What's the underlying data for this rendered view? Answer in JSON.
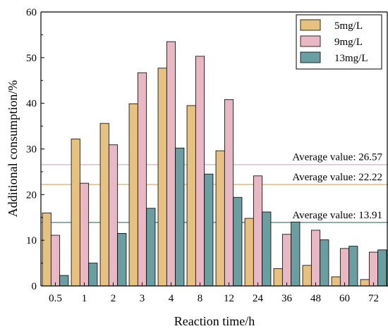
{
  "chart_data": {
    "type": "bar",
    "xlabel": "Reaction time/h",
    "ylabel": "Additional consumption/%",
    "ylim": [
      0,
      60
    ],
    "yticks": [
      "0",
      "10",
      "20",
      "30",
      "40",
      "50",
      "60"
    ],
    "categories": [
      "0.5",
      "1",
      "2",
      "3",
      "4",
      "8",
      "12",
      "24",
      "36",
      "48",
      "60",
      "72"
    ],
    "series": [
      {
        "name": "5mg/L",
        "color": "#e6c182",
        "values": [
          16.0,
          32.2,
          35.6,
          39.9,
          47.7,
          39.5,
          29.6,
          14.8,
          3.8,
          4.5,
          2.0,
          1.4
        ]
      },
      {
        "name": "9mg/L",
        "color": "#e8b9c4",
        "values": [
          11.1,
          22.5,
          30.9,
          46.7,
          53.5,
          50.3,
          40.8,
          24.1,
          11.3,
          12.2,
          8.2,
          7.4
        ]
      },
      {
        "name": "13mg/L",
        "color": "#6a9ea0",
        "values": [
          2.3,
          5.0,
          11.5,
          17.0,
          30.2,
          24.5,
          19.4,
          16.2,
          14.0,
          10.1,
          8.7,
          7.9
        ]
      }
    ],
    "reference_lines": [
      {
        "label": "Average value: 26.57",
        "value": 26.57,
        "color": "#e8b9c4"
      },
      {
        "label": "Average value: 22.22",
        "value": 22.22,
        "color": "#e6c182"
      },
      {
        "label": "Average value: 13.91",
        "value": 13.91,
        "color": "#6a9ea0"
      }
    ],
    "legend_position": "top-right",
    "grid": false
  }
}
